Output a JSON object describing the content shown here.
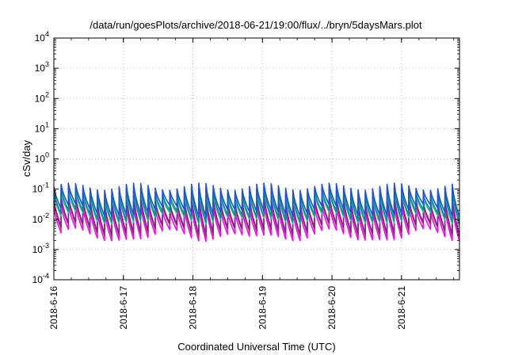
{
  "chart_data": {
    "type": "line",
    "title": "/data/run/goesPlots/archive/2018-06-21/19:00/flux/../bryn/5daysMars.plot",
    "xlabel": "Coordinated Universal Time (UTC)",
    "ylabel": "cSv/day",
    "yscale": "log",
    "ylim": [
      0.0001,
      10000
    ],
    "xlim": [
      "2018-06-16 00:00",
      "2018-06-21 20:00"
    ],
    "grid": true,
    "legend": "none",
    "x_ticks": [
      "2018-6-16",
      "2018-6-17",
      "2018-6-18",
      "2018-6-19",
      "2018-6-20",
      "2018-6-21"
    ],
    "y_ticks": [
      {
        "base": "10",
        "exp": "-4"
      },
      {
        "base": "10",
        "exp": "-3"
      },
      {
        "base": "10",
        "exp": "-2"
      },
      {
        "base": "10",
        "exp": "-1"
      },
      {
        "base": "10",
        "exp": "0"
      },
      {
        "base": "10",
        "exp": "1"
      },
      {
        "base": "10",
        "exp": "2"
      },
      {
        "base": "10",
        "exp": "3"
      },
      {
        "base": "10",
        "exp": "4"
      }
    ],
    "cycle_hours": 2.5,
    "series": [
      {
        "color": "#1f4fe0",
        "peak": 0.12,
        "trough": 0.018
      },
      {
        "color": "#0a8f8f",
        "peak": 0.09,
        "trough": 0.012
      },
      {
        "color": "#17c0a0",
        "peak": 0.07,
        "trough": 0.01
      },
      {
        "color": "#7a2a8f",
        "peak": 0.05,
        "trough": 0.0045
      },
      {
        "color": "#c03050",
        "peak": 0.04,
        "trough": 0.004
      },
      {
        "color": "#ff00ff",
        "peak": 0.025,
        "trough": 0.0028
      }
    ]
  }
}
